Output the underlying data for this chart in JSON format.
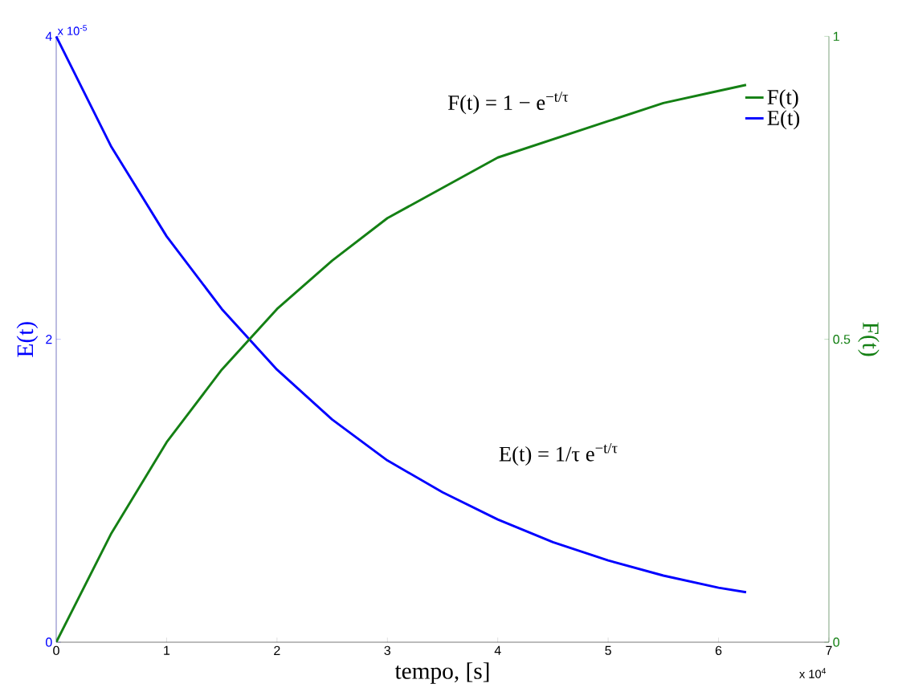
{
  "chart_data": {
    "type": "line",
    "xlabel": "tempo, [s]",
    "ylabel": "E(t)",
    "y2label": "F(t)",
    "x": [
      0,
      0.5,
      1,
      1.5,
      2,
      2.5,
      3,
      3.5,
      4,
      4.5,
      5,
      5.5,
      6,
      6.25
    ],
    "series": [
      {
        "name": "F(t)",
        "color": "#148014",
        "axis": "y2",
        "values": [
          0,
          0.18,
          0.33,
          0.45,
          0.55,
          0.63,
          0.7,
          0.75,
          0.8,
          0.83,
          0.86,
          0.89,
          0.91,
          0.92
        ]
      },
      {
        "name": "E(t)",
        "color": "#0000ff",
        "values": [
          4,
          3.27,
          2.68,
          2.2,
          1.8,
          1.47,
          1.2,
          0.99,
          0.81,
          0.66,
          0.54,
          0.44,
          0.36,
          0.33
        ]
      }
    ],
    "xlim": [
      0,
      7
    ],
    "xticks": [
      0,
      1,
      2,
      3,
      4,
      5,
      6,
      7
    ],
    "ylim": [
      0,
      4
    ],
    "yticks": [
      0,
      2,
      4
    ],
    "y2lim": [
      0,
      1
    ],
    "y2ticks": [
      0,
      0.5,
      1
    ],
    "legend": "top right",
    "annotations": [
      "x 10$^{-5}$",
      "x 10$^{4}$",
      "F(t) = 1 − e$^{−t/τ}$",
      "E(t) = 1/τ  e$^{−t/τ}$"
    ]
  }
}
